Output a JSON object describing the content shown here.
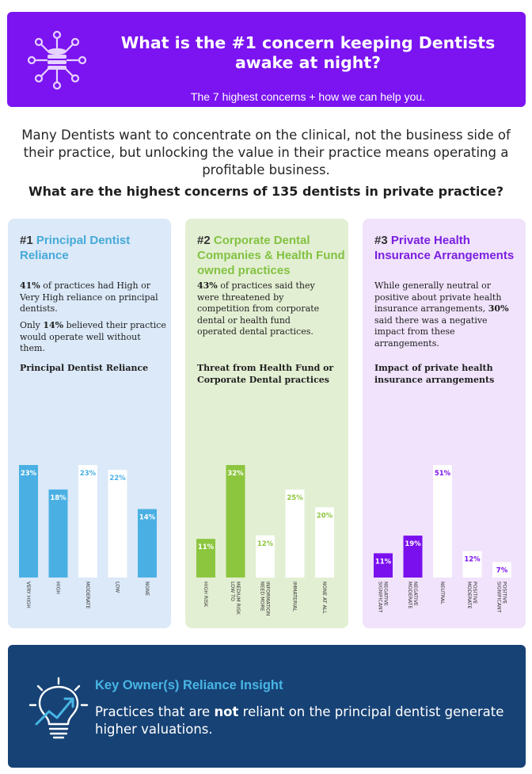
{
  "header": {
    "title": "What is the #1 concern keeping Dentists awake at night?",
    "subtitle": "The 7 highest concerns + how we can help you.",
    "icon": "database-network-icon"
  },
  "intro": {
    "text": "Many Dentists want to concentrate on the clinical, not the business side of their practice, but unlocking the value in their practice means operating a profitable business.",
    "question": "What are the highest concerns of 135 dentists in private practice?"
  },
  "panels": [
    {
      "number": "#1",
      "title": "Principal Dentist Reliance",
      "p1_strong": "41%",
      "p1_rest": " of practices had High or Very High reliance on principal dentists.",
      "p2_a": "Only ",
      "p2_strong": "14%",
      "p2_rest": " believed their practice would operate well without them."
    },
    {
      "number": "#2",
      "title": "Corporate Dental Companies & Health Fund owned practices",
      "p1_strong": "43%",
      "p1_rest": " of practices said they were threatened by competition from corporate dental or health fund operated dental practices."
    },
    {
      "number": "#3",
      "title": "Private Health Insurance Arrangements",
      "p1_a": "While generally neutral or positive about private health insurance arrangements, ",
      "p1_strong": "30%",
      "p1_rest": " said there was a negative impact from these arrangements."
    }
  ],
  "chart_data": [
    {
      "type": "bar",
      "title": "Principal Dentist Reliance",
      "categories": [
        "VERY HIGH",
        "HIGH",
        "MODERATE",
        "LOW",
        "NONE"
      ],
      "values": [
        23,
        18,
        23,
        22,
        14
      ],
      "value_labels": [
        "23%",
        "18%",
        "23%",
        "22%",
        "14%"
      ],
      "bar_colors": [
        "#4ab0e3",
        "#4ab0e3",
        "#ffffff",
        "#ffffff",
        "#4ab0e3"
      ],
      "label_colors": [
        "#ffffff",
        "#ffffff",
        "#4ab0e3",
        "#4ab0e3",
        "#ffffff"
      ],
      "xlabel": "",
      "ylabel": "",
      "ylim": [
        0,
        23
      ]
    },
    {
      "type": "bar",
      "title": "Threat from Health Fund or Corporate Dental practices",
      "categories": [
        "HIGH RISK",
        "LOW TO MEDIUM RISK",
        "NEED MORE INFORMATION",
        "IMMATERIAL",
        "NONE AT ALL"
      ],
      "values": [
        11,
        32,
        12,
        25,
        20
      ],
      "value_labels": [
        "11%",
        "32%",
        "12%",
        "25%",
        "20%"
      ],
      "bar_colors": [
        "#8cc63f",
        "#8cc63f",
        "#ffffff",
        "#ffffff",
        "#ffffff"
      ],
      "label_colors": [
        "#ffffff",
        "#ffffff",
        "#8cc63f",
        "#8cc63f",
        "#8cc63f"
      ],
      "xlabel": "",
      "ylabel": "",
      "ylim": [
        0,
        32
      ]
    },
    {
      "type": "bar",
      "title": "Impact of private health insurance arrangements",
      "categories": [
        "SIGNIFICANT NEGATIVE",
        "MODERATE NEGATIVE",
        "NEUTRAL",
        "MODERATE POSITIVE",
        "SIGNIFICANT POSITIVE"
      ],
      "values": [
        11,
        19,
        51,
        12,
        7
      ],
      "value_labels": [
        "11%",
        "19%",
        "51%",
        "12%",
        "7%"
      ],
      "bar_colors": [
        "#7a10ee",
        "#7a10ee",
        "#ffffff",
        "#ffffff",
        "#ffffff"
      ],
      "label_colors": [
        "#ffffff",
        "#ffffff",
        "#7a10ee",
        "#7a10ee",
        "#7a10ee"
      ],
      "xlabel": "",
      "ylabel": "",
      "ylim": [
        0,
        51
      ]
    }
  ],
  "insight": {
    "title": "Key Owner(s) Reliance Insight",
    "text_a": "Practices that are ",
    "text_strong": "not",
    "text_b": " reliant on the principal dentist generate higher valuations.",
    "icon": "lightbulb-growth-icon"
  },
  "colors": {
    "banner": "#7b14f0",
    "blue": "#4ab0e3",
    "green": "#8cc63f",
    "purple": "#7a10ee",
    "insight_bg": "#174275"
  }
}
